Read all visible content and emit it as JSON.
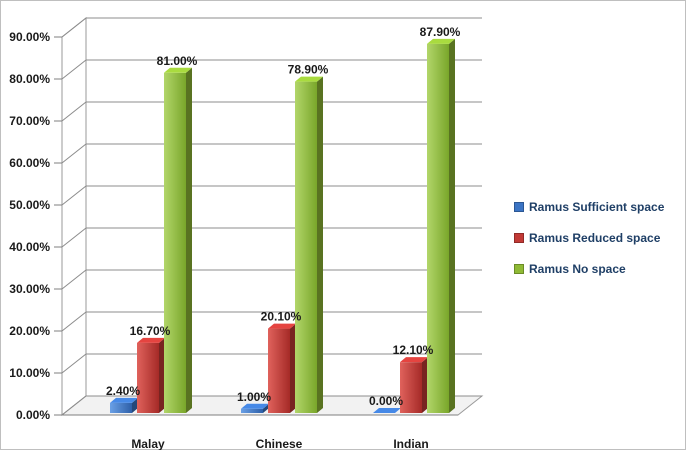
{
  "chart_data": {
    "type": "bar",
    "categories": [
      "Malay",
      "Chinese",
      "Indian"
    ],
    "series": [
      {
        "name": "Ramus Sufficient space",
        "values": [
          2.4,
          1.0,
          0.0
        ],
        "labels": [
          "2.40%",
          "1.00%",
          "0.00%"
        ],
        "color": "#3b74c4"
      },
      {
        "name": "Ramus Reduced space",
        "values": [
          16.7,
          20.1,
          12.1
        ],
        "labels": [
          "16.70%",
          "20.10%",
          "12.10%"
        ],
        "color": "#c23a36"
      },
      {
        "name": "Ramus No space",
        "values": [
          81.0,
          78.9,
          87.9
        ],
        "labels": [
          "81.00%",
          "78.90%",
          "87.90%"
        ],
        "color": "#8fba35"
      }
    ],
    "y_ticks": [
      "0.00%",
      "10.00%",
      "20.00%",
      "30.00%",
      "40.00%",
      "50.00%",
      "60.00%",
      "70.00%",
      "80.00%",
      "90.00%"
    ],
    "ylim": [
      0,
      90
    ],
    "title": "",
    "xlabel": "",
    "ylabel": "",
    "grid": true,
    "legend_position": "right",
    "three_d": true
  }
}
